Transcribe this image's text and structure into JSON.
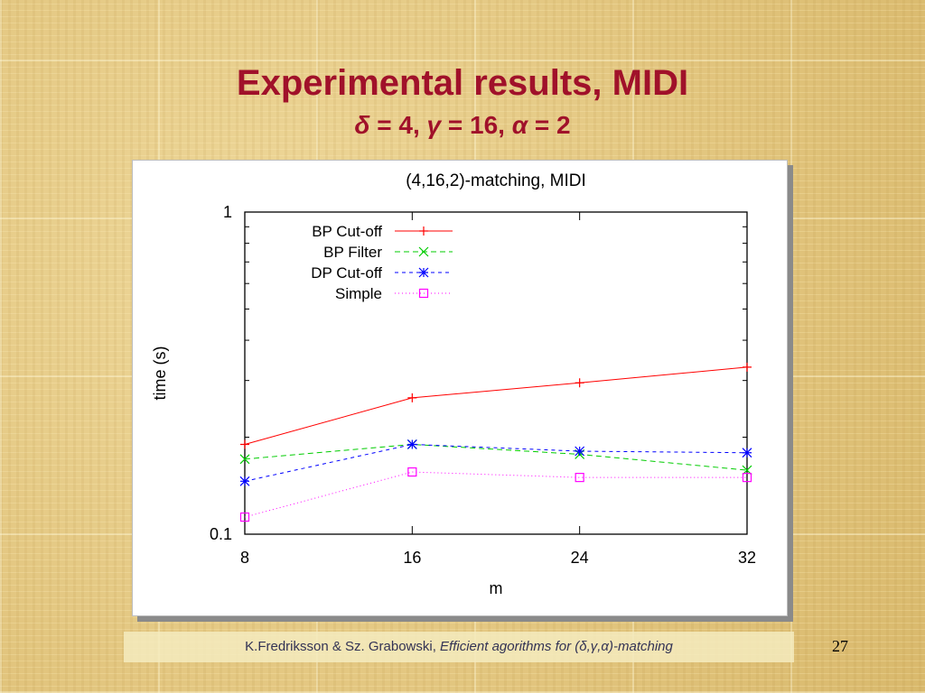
{
  "slide": {
    "title": "Experimental results, MIDI",
    "subtitle_parts": [
      {
        "text": "δ",
        "italic": true
      },
      {
        "text": " = 4, ",
        "italic": false
      },
      {
        "text": "γ",
        "italic": true
      },
      {
        "text": " = 16, ",
        "italic": false
      },
      {
        "text": "α",
        "italic": true
      },
      {
        "text": " = 2",
        "italic": false
      }
    ],
    "footer_authors": "K.Fredriksson & Sz. Grabowski, ",
    "footer_title": "Efficient agorithms for (δ,γ,α)-matching",
    "page_number": "27",
    "title_color": "#a0112a"
  },
  "chart_data": {
    "type": "line",
    "title": "(4,16,2)-matching, MIDI",
    "xlabel": "m",
    "ylabel": "time (s)",
    "x": [
      8,
      16,
      24,
      32
    ],
    "xlim": [
      8,
      32
    ],
    "ylim": [
      0.1,
      1
    ],
    "yscale": "log",
    "x_tick_labels": [
      "8",
      "16",
      "24",
      "32"
    ],
    "y_tick_labels": [
      "0.1",
      "1"
    ],
    "legend_position": "top-left",
    "series": [
      {
        "name": "BP Cut-off",
        "values": [
          0.19,
          0.265,
          0.295,
          0.33
        ],
        "color": "#ff0000",
        "marker": "plus",
        "dash": ""
      },
      {
        "name": "BP Filter",
        "values": [
          0.171,
          0.19,
          0.177,
          0.158
        ],
        "color": "#00cc00",
        "marker": "x",
        "dash": "6,4"
      },
      {
        "name": "DP Cut-off",
        "values": [
          0.146,
          0.19,
          0.181,
          0.179
        ],
        "color": "#0000ff",
        "marker": "star",
        "dash": "4,4"
      },
      {
        "name": "Simple",
        "values": [
          0.113,
          0.156,
          0.15,
          0.15
        ],
        "color": "#ff00ff",
        "marker": "square",
        "dash": "1,3"
      }
    ]
  }
}
